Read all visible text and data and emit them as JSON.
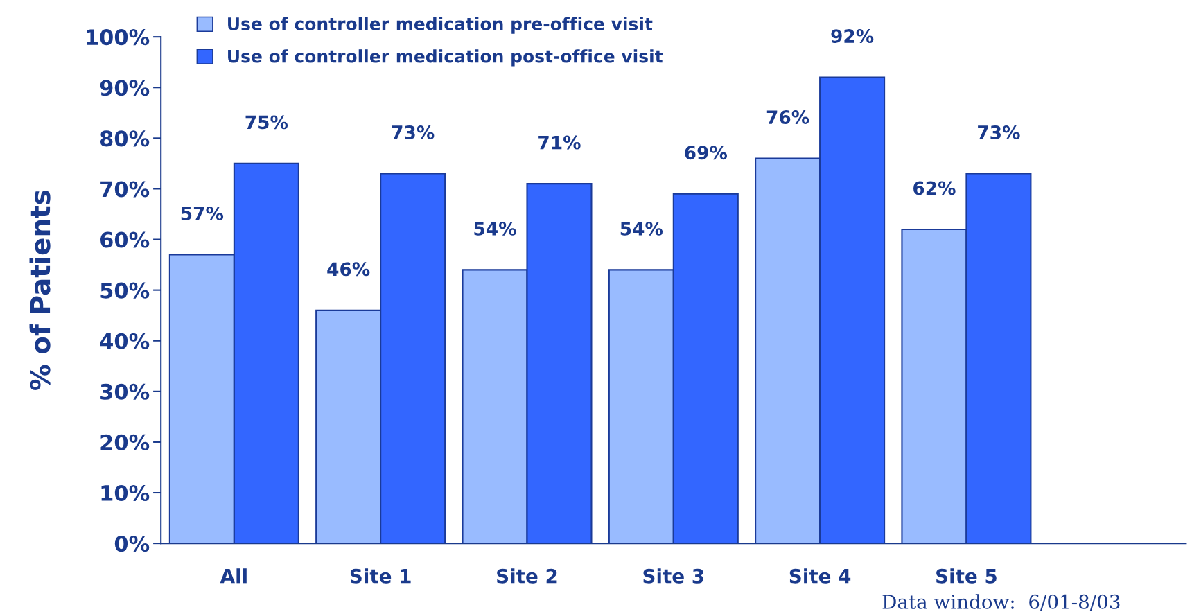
{
  "chart_data": {
    "type": "bar",
    "ylabel": "% of Patients",
    "categories": [
      "All",
      "Site 1",
      "Site 2",
      "Site 3",
      "Site 4",
      "Site 5",
      null
    ],
    "series": [
      {
        "name": "Use of controller medication pre-office visit",
        "color": "#99bbff",
        "values": [
          57,
          46,
          54,
          54,
          76,
          62,
          null
        ],
        "value_labels": [
          "57%",
          "46%",
          "54%",
          "54%",
          "76%",
          "62%",
          null
        ]
      },
      {
        "name": "Use of controller medication post-office visit",
        "color": "#3366ff",
        "values": [
          75,
          73,
          71,
          69,
          92,
          73,
          null
        ],
        "value_labels": [
          "75%",
          "73%",
          "71%",
          "69%",
          "92%",
          "73%",
          null
        ]
      }
    ],
    "ylim": [
      0,
      100
    ],
    "yticks": [
      {
        "value": 0,
        "label": "0%"
      },
      {
        "value": 10,
        "label": "10%"
      },
      {
        "value": 20,
        "label": "20%"
      },
      {
        "value": 30,
        "label": "30%"
      },
      {
        "value": 40,
        "label": "40%"
      },
      {
        "value": 50,
        "label": "50%"
      },
      {
        "value": 60,
        "label": "60%"
      },
      {
        "value": 70,
        "label": "70%"
      },
      {
        "value": 80,
        "label": "80%"
      },
      {
        "value": 90,
        "label": "90%"
      },
      {
        "value": 100,
        "label": "100%"
      }
    ],
    "grid": false,
    "legend": "top left",
    "annotations": [
      "Data window:  6/01-8/03"
    ]
  }
}
